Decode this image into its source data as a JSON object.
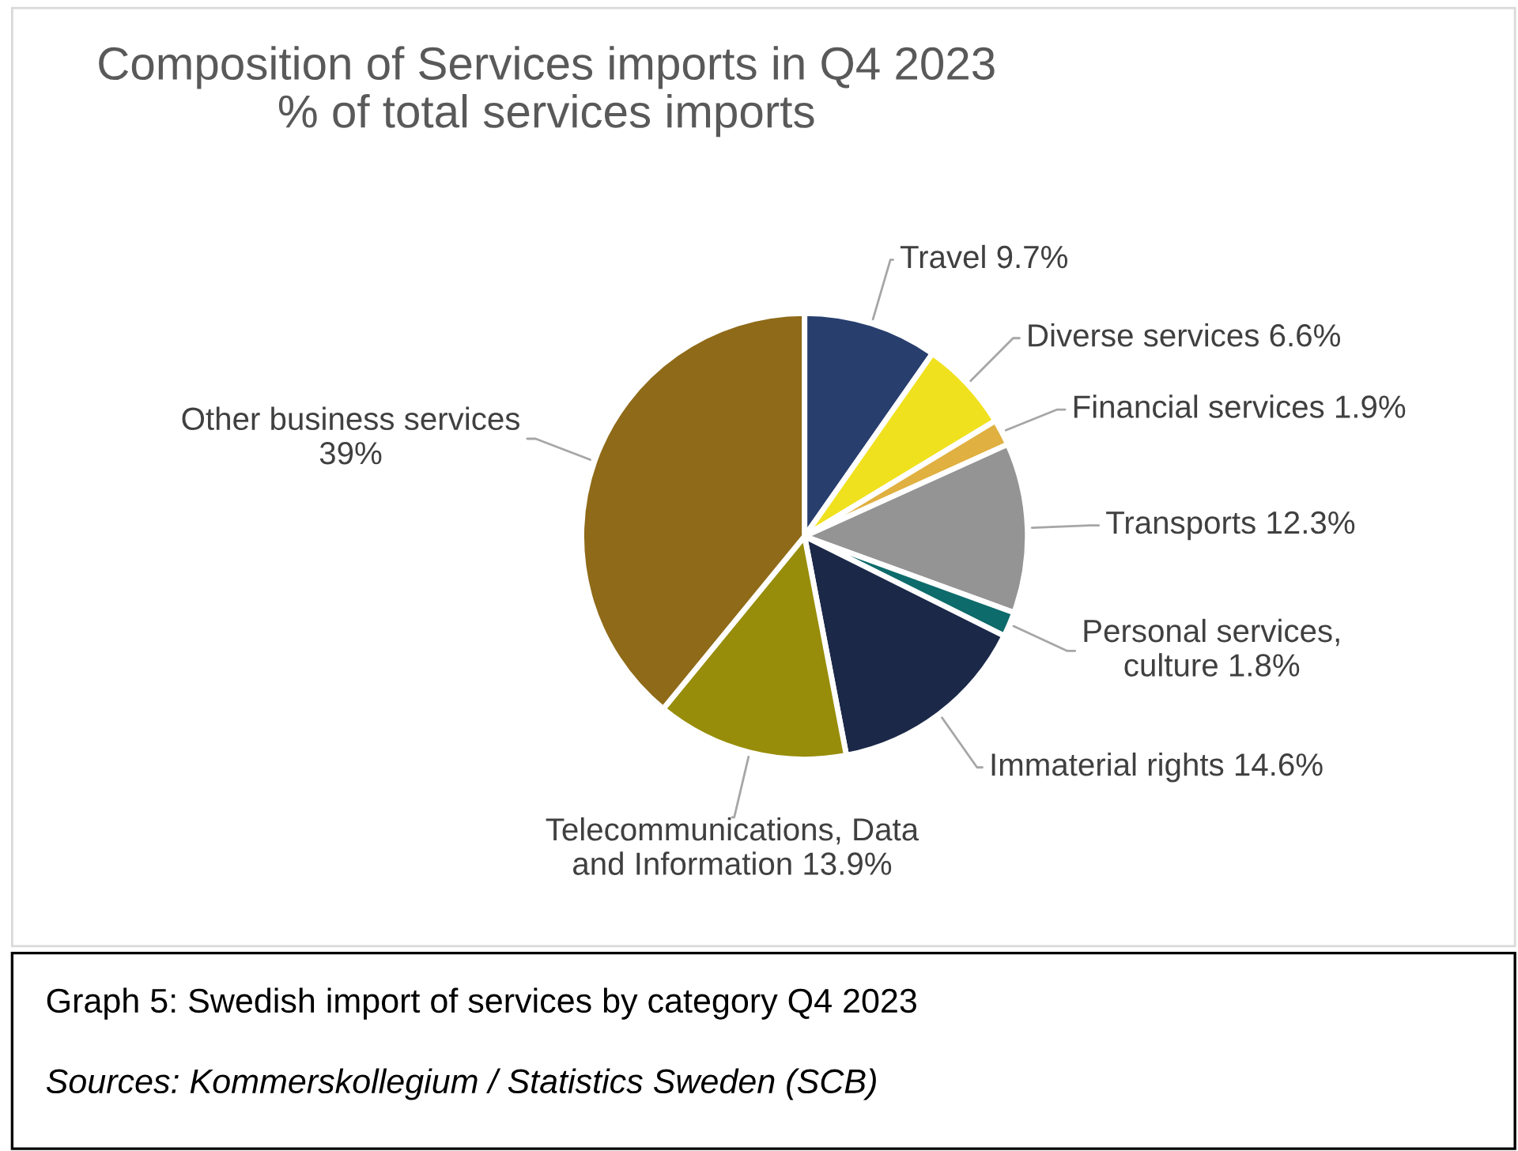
{
  "chart_data": {
    "type": "pie",
    "title": "Composition of Services imports in Q4 2023\n% of total services imports",
    "categories": [
      "Travel",
      "Diverse services",
      "Financial services",
      "Transports",
      "Personal services, culture",
      "Immaterial rights",
      "Telecommunications, Data and Information",
      "Other business services"
    ],
    "values": [
      9.7,
      6.6,
      1.9,
      12.3,
      1.8,
      14.6,
      13.9,
      39
    ],
    "colors": [
      "#283f6e",
      "#f0e11e",
      "#e0b040",
      "#949494",
      "#0e6b6b",
      "#1b2848",
      "#978d0a",
      "#8f6a18"
    ],
    "value_labels": [
      "9.7%",
      "6.6%",
      "1.9%",
      "12.3%",
      "1.8%",
      "14.6%",
      "13.9%",
      "39%"
    ],
    "legend": false,
    "annotations": [
      "Graph 5: Swedish import of services by category Q4 2023",
      "Sources: Kommerskollegium / Statistics Sweden (SCB)"
    ]
  }
}
